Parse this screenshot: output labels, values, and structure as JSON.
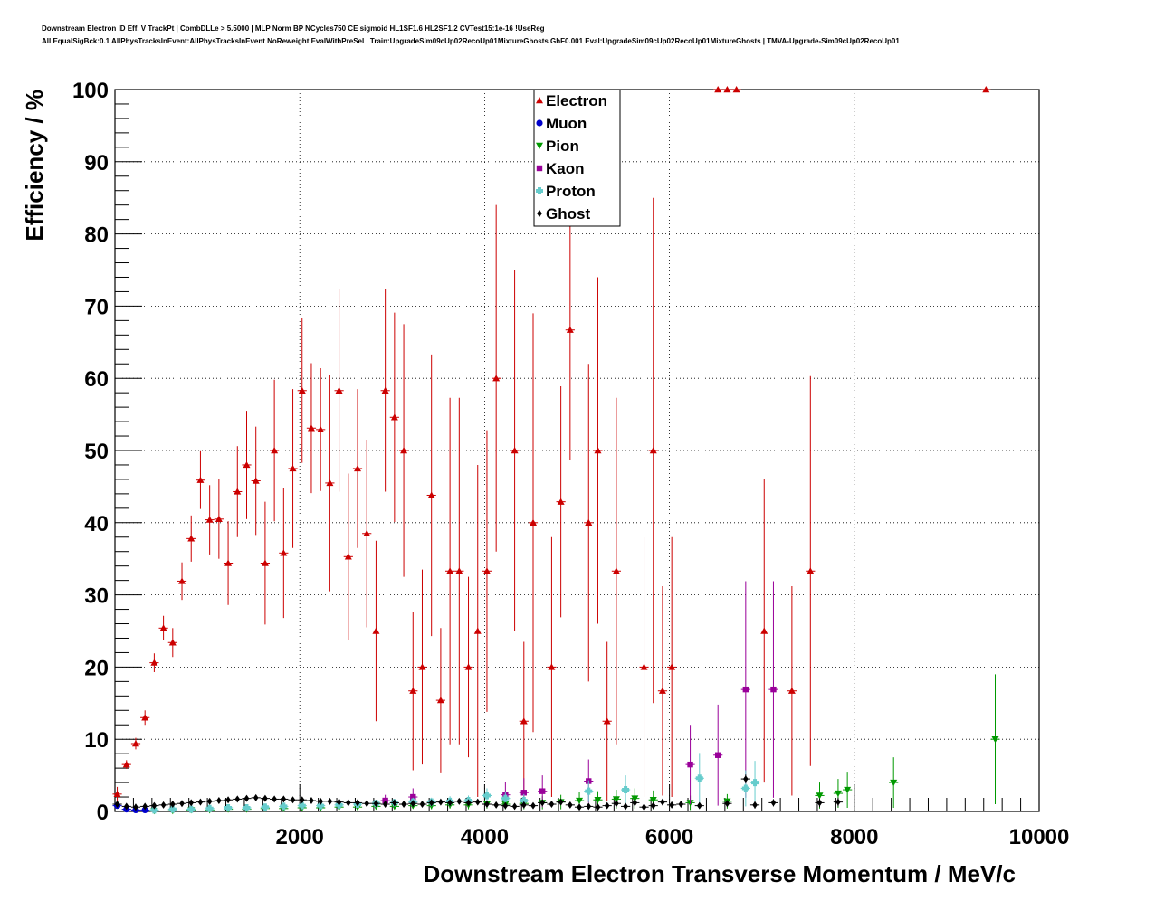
{
  "title": {
    "line1": "Downstream Electron ID Eff. V TrackPt | CombDLLe > 5.5000 | MLP Norm BP NCycles750 CE sigmoid HL1SF1.6 HL2SF1.2 CVTest15:1e-16 !UseReg",
    "line2": "All EqualSigBck:0.1 AllPhysTracksInEvent:AllPhysTracksInEvent NoReweight EvalWithPreSel | Train:UpgradeSim09cUp02RecoUp01MixtureGhosts GhF0.001 Eval:UpgradeSim09cUp02RecoUp01MixtureGhosts | TMVA-Upgrade-Sim09cUp02RecoUp01"
  },
  "chart_data": {
    "type": "scatter",
    "xlabel": "Downstream Electron Transverse Momentum / MeV/c",
    "ylabel": "Efficiency / %",
    "xlim": [
      0,
      10000
    ],
    "ylim": [
      0,
      100
    ],
    "xticks": [
      2000,
      4000,
      6000,
      8000,
      10000
    ],
    "yticks": [
      0,
      10,
      20,
      30,
      40,
      50,
      60,
      70,
      80,
      90,
      100
    ],
    "grid": true,
    "legend_position": "top-center",
    "series": [
      {
        "name": "Electron",
        "color": "#cc0000",
        "marker": "triangle-up",
        "points": [
          [
            25,
            2.4,
            1.0
          ],
          [
            125,
            6.5,
            0.6
          ],
          [
            225,
            9.4,
            0.8
          ],
          [
            325,
            13.0,
            1.0
          ],
          [
            425,
            20.6,
            1.3
          ],
          [
            525,
            25.4,
            1.7
          ],
          [
            625,
            23.4,
            2.0
          ],
          [
            725,
            31.9,
            2.6
          ],
          [
            825,
            37.8,
            3.2
          ],
          [
            925,
            45.9,
            4.0
          ],
          [
            1025,
            40.4,
            4.8
          ],
          [
            1125,
            40.5,
            5.5
          ],
          [
            1225,
            34.4,
            5.8
          ],
          [
            1325,
            44.3,
            6.3
          ],
          [
            1425,
            48.0,
            7.5
          ],
          [
            1525,
            45.8,
            7.5
          ],
          [
            1625,
            34.4,
            8.5
          ],
          [
            1725,
            50.0,
            9.8
          ],
          [
            1825,
            35.8,
            9.0
          ],
          [
            1925,
            47.5,
            11.0
          ],
          [
            2025,
            58.3,
            10.0
          ],
          [
            2125,
            53.1,
            9.0
          ],
          [
            2225,
            52.9,
            8.5
          ],
          [
            2325,
            45.5,
            15.0
          ],
          [
            2425,
            58.3,
            14.0
          ],
          [
            2525,
            35.3,
            11.5
          ],
          [
            2625,
            47.5,
            11.0
          ],
          [
            2725,
            38.5,
            13.0
          ],
          [
            2825,
            25.0,
            12.5
          ],
          [
            2925,
            58.3,
            14.0
          ],
          [
            3025,
            54.6,
            14.5
          ],
          [
            3125,
            50.0,
            17.5
          ],
          [
            3225,
            16.7,
            11.0
          ],
          [
            3325,
            20.0,
            13.5
          ],
          [
            3425,
            43.8,
            19.5
          ],
          [
            3525,
            15.4,
            10.0
          ],
          [
            3625,
            33.3,
            24.0
          ],
          [
            3725,
            33.3,
            24.0
          ],
          [
            3825,
            20.0,
            12.5
          ],
          [
            3925,
            25.0,
            23.0
          ],
          [
            4025,
            33.3,
            19.5
          ],
          [
            4125,
            60.0,
            24.0
          ],
          [
            4325,
            50.0,
            25.0
          ],
          [
            4425,
            12.5,
            11.0
          ],
          [
            4525,
            40.0,
            29.0
          ],
          [
            4725,
            20.0,
            18.0
          ],
          [
            4825,
            42.9,
            16.0
          ],
          [
            4925,
            66.7,
            18.0
          ],
          [
            5125,
            40.0,
            22.0
          ],
          [
            5225,
            50.0,
            24.0
          ],
          [
            5325,
            12.5,
            11.0
          ],
          [
            5425,
            33.3,
            24.0
          ],
          [
            5725,
            20.0,
            18.0
          ],
          [
            5825,
            50.0,
            35.0
          ],
          [
            5925,
            16.7,
            14.5
          ],
          [
            6025,
            20.0,
            18.0
          ],
          [
            6525,
            100.0,
            0.0
          ],
          [
            6625,
            100.0,
            0.0
          ],
          [
            6725,
            100.0,
            0.0
          ],
          [
            7025,
            25.0,
            21.0
          ],
          [
            7325,
            16.7,
            14.5
          ],
          [
            7525,
            33.3,
            27.0
          ],
          [
            9425,
            100.0,
            0.0
          ]
        ]
      },
      {
        "name": "Muon",
        "color": "#0000cc",
        "marker": "circle",
        "points": [
          [
            25,
            0.8,
            0.3
          ],
          [
            125,
            0.3,
            0.2
          ],
          [
            225,
            0.2,
            0.2
          ],
          [
            325,
            0.2,
            0.2
          ]
        ]
      },
      {
        "name": "Pion",
        "color": "#009900",
        "marker": "triangle-down",
        "points": [
          [
            425,
            0.1,
            0.1
          ],
          [
            625,
            0.1,
            0.1
          ],
          [
            825,
            0.2,
            0.1
          ],
          [
            1025,
            0.2,
            0.1
          ],
          [
            1225,
            0.3,
            0.1
          ],
          [
            1425,
            0.3,
            0.2
          ],
          [
            1625,
            0.4,
            0.2
          ],
          [
            1825,
            0.4,
            0.2
          ],
          [
            2025,
            0.5,
            0.2
          ],
          [
            2225,
            0.5,
            0.3
          ],
          [
            2425,
            0.6,
            0.3
          ],
          [
            2625,
            0.6,
            0.3
          ],
          [
            2825,
            0.7,
            0.4
          ],
          [
            3025,
            0.7,
            0.4
          ],
          [
            3225,
            0.8,
            0.4
          ],
          [
            3425,
            0.8,
            0.5
          ],
          [
            3625,
            0.9,
            0.5
          ],
          [
            3825,
            0.9,
            0.6
          ],
          [
            4025,
            1.0,
            0.6
          ],
          [
            4225,
            1.0,
            0.7
          ],
          [
            4425,
            1.1,
            0.8
          ],
          [
            4625,
            1.2,
            0.9
          ],
          [
            4825,
            1.3,
            1.0
          ],
          [
            5025,
            1.5,
            1.2
          ],
          [
            5225,
            1.6,
            1.2
          ],
          [
            5425,
            1.7,
            1.3
          ],
          [
            5625,
            1.8,
            1.4
          ],
          [
            5825,
            1.6,
            1.3
          ],
          [
            6225,
            1.2,
            1.0
          ],
          [
            6625,
            1.4,
            1.0
          ],
          [
            7625,
            2.2,
            1.8
          ],
          [
            7825,
            2.5,
            2.0
          ],
          [
            7925,
            3.0,
            2.5
          ],
          [
            8425,
            4.0,
            3.5
          ],
          [
            9525,
            10.0,
            9.0
          ]
        ]
      },
      {
        "name": "Kaon",
        "color": "#990099",
        "marker": "square",
        "points": [
          [
            2925,
            1.5,
            0.8
          ],
          [
            3225,
            2.0,
            1.2
          ],
          [
            4225,
            2.3,
            1.8
          ],
          [
            4425,
            2.6,
            2.0
          ],
          [
            4625,
            2.8,
            2.2
          ],
          [
            5125,
            4.2,
            3.0
          ],
          [
            6225,
            6.5,
            5.5
          ],
          [
            6525,
            7.8,
            7.0
          ],
          [
            6825,
            16.9,
            15.0
          ],
          [
            7125,
            16.9,
            15.0
          ]
        ]
      },
      {
        "name": "Proton",
        "color": "#66cccc",
        "marker": "cross",
        "points": [
          [
            425,
            0.2,
            0.1
          ],
          [
            625,
            0.3,
            0.1
          ],
          [
            825,
            0.3,
            0.1
          ],
          [
            1025,
            0.4,
            0.2
          ],
          [
            1225,
            0.5,
            0.2
          ],
          [
            1425,
            0.5,
            0.2
          ],
          [
            1625,
            0.6,
            0.3
          ],
          [
            1825,
            0.7,
            0.3
          ],
          [
            2025,
            0.8,
            0.3
          ],
          [
            2225,
            0.8,
            0.3
          ],
          [
            2425,
            0.9,
            0.4
          ],
          [
            2625,
            1.0,
            0.4
          ],
          [
            2825,
            1.1,
            0.5
          ],
          [
            3025,
            1.2,
            0.5
          ],
          [
            3225,
            1.3,
            0.6
          ],
          [
            3425,
            1.3,
            0.6
          ],
          [
            3625,
            1.4,
            0.7
          ],
          [
            3825,
            1.5,
            0.7
          ],
          [
            4025,
            2.2,
            1.0
          ],
          [
            4225,
            1.8,
            0.9
          ],
          [
            4425,
            1.5,
            0.9
          ],
          [
            5125,
            2.8,
            1.5
          ],
          [
            5525,
            3.0,
            2.0
          ],
          [
            6325,
            4.6,
            3.5
          ],
          [
            6825,
            3.2,
            2.5
          ],
          [
            6925,
            4.0,
            3.0
          ]
        ]
      },
      {
        "name": "Ghost",
        "color": "#000000",
        "marker": "diamond",
        "points": [
          [
            25,
            1.0,
            0.2
          ],
          [
            125,
            0.7,
            0.1
          ],
          [
            225,
            0.6,
            0.1
          ],
          [
            325,
            0.7,
            0.1
          ],
          [
            425,
            0.8,
            0.1
          ],
          [
            525,
            0.9,
            0.1
          ],
          [
            625,
            1.0,
            0.1
          ],
          [
            725,
            1.1,
            0.1
          ],
          [
            825,
            1.2,
            0.1
          ],
          [
            925,
            1.3,
            0.2
          ],
          [
            1025,
            1.4,
            0.2
          ],
          [
            1125,
            1.5,
            0.2
          ],
          [
            1225,
            1.6,
            0.2
          ],
          [
            1325,
            1.7,
            0.2
          ],
          [
            1425,
            1.8,
            0.2
          ],
          [
            1525,
            1.9,
            0.3
          ],
          [
            1625,
            1.8,
            0.3
          ],
          [
            1725,
            1.7,
            0.3
          ],
          [
            1825,
            1.7,
            0.3
          ],
          [
            1925,
            1.6,
            0.3
          ],
          [
            2025,
            1.6,
            0.3
          ],
          [
            2125,
            1.5,
            0.3
          ],
          [
            2225,
            1.4,
            0.3
          ],
          [
            2325,
            1.4,
            0.3
          ],
          [
            2425,
            1.3,
            0.3
          ],
          [
            2525,
            1.2,
            0.3
          ],
          [
            2625,
            1.2,
            0.3
          ],
          [
            2725,
            1.1,
            0.3
          ],
          [
            2825,
            1.1,
            0.3
          ],
          [
            2925,
            1.0,
            0.3
          ],
          [
            3025,
            1.2,
            0.3
          ],
          [
            3125,
            1.0,
            0.3
          ],
          [
            3225,
            1.1,
            0.3
          ],
          [
            3325,
            1.0,
            0.3
          ],
          [
            3425,
            1.2,
            0.3
          ],
          [
            3525,
            1.3,
            0.3
          ],
          [
            3625,
            1.2,
            0.3
          ],
          [
            3725,
            1.4,
            0.3
          ],
          [
            3825,
            1.2,
            0.3
          ],
          [
            3925,
            1.3,
            0.3
          ],
          [
            4025,
            1.0,
            0.3
          ],
          [
            4125,
            0.9,
            0.3
          ],
          [
            4225,
            0.8,
            0.3
          ],
          [
            4325,
            0.7,
            0.3
          ],
          [
            4425,
            0.9,
            0.3
          ],
          [
            4525,
            0.8,
            0.3
          ],
          [
            4625,
            1.2,
            0.3
          ],
          [
            4725,
            1.0,
            0.3
          ],
          [
            4825,
            1.3,
            0.4
          ],
          [
            4925,
            0.9,
            0.3
          ],
          [
            5025,
            0.6,
            0.3
          ],
          [
            5125,
            0.7,
            0.3
          ],
          [
            5225,
            0.6,
            0.3
          ],
          [
            5325,
            0.8,
            0.3
          ],
          [
            5425,
            1.1,
            0.4
          ],
          [
            5525,
            0.7,
            0.4
          ],
          [
            5625,
            1.2,
            0.4
          ],
          [
            5725,
            0.6,
            0.4
          ],
          [
            5825,
            0.8,
            0.4
          ],
          [
            5925,
            1.3,
            0.4
          ],
          [
            6025,
            0.9,
            0.4
          ],
          [
            6125,
            1.0,
            0.4
          ],
          [
            6325,
            0.8,
            0.4
          ],
          [
            6625,
            1.1,
            0.4
          ],
          [
            6825,
            4.5,
            0.6
          ],
          [
            6925,
            0.9,
            0.5
          ],
          [
            7125,
            1.2,
            0.5
          ],
          [
            7625,
            1.2,
            0.6
          ],
          [
            7825,
            1.3,
            0.6
          ]
        ]
      }
    ]
  }
}
